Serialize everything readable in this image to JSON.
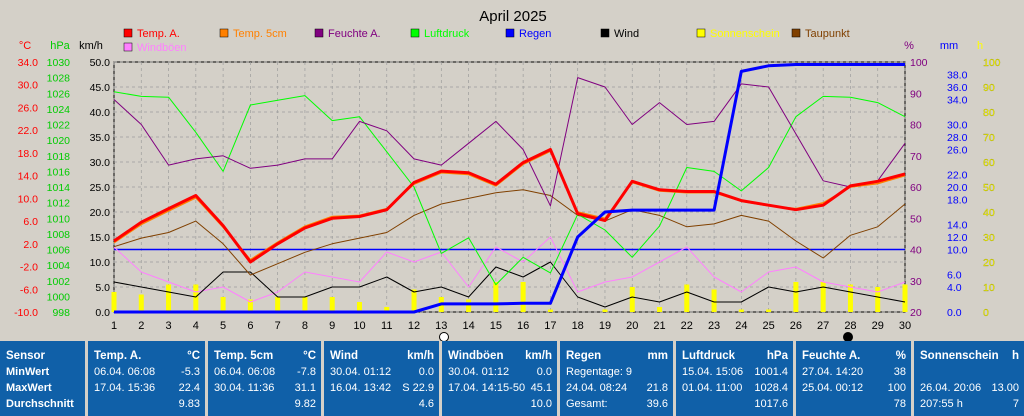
{
  "chart_data": {
    "type": "line",
    "title": "April 2025",
    "x": [
      1,
      2,
      3,
      4,
      5,
      6,
      7,
      8,
      9,
      10,
      11,
      12,
      13,
      14,
      15,
      16,
      17,
      18,
      19,
      20,
      21,
      22,
      23,
      24,
      25,
      26,
      27,
      28,
      29,
      30
    ],
    "xticks": [
      "1",
      "2",
      "3",
      "4",
      "5",
      "6",
      "7",
      "8",
      "9",
      "10",
      "11",
      "12",
      "13",
      "14",
      "15",
      "16",
      "17",
      "18",
      "19",
      "20",
      "21",
      "22",
      "23",
      "24",
      "25",
      "26",
      "27",
      "28",
      "29",
      "30"
    ],
    "axes": {
      "temp": {
        "unit": "°C",
        "color": "#ff0000",
        "range": [
          -10,
          34
        ],
        "ticks": [
          "34.0",
          "30.0",
          "26.0",
          "22.0",
          "18.0",
          "14.0",
          "10.0",
          "6.0",
          "2.0",
          "-2.0",
          "-6.0",
          "-10.0"
        ]
      },
      "press": {
        "unit": "hPa",
        "color": "#00cc00",
        "range": [
          998,
          1030
        ],
        "ticks": [
          "1030",
          "1028",
          "1026",
          "1024",
          "1022",
          "1020",
          "1018",
          "1016",
          "1014",
          "1012",
          "1010",
          "1008",
          "1006",
          "1004",
          "1002",
          "1000",
          "998"
        ]
      },
      "wind": {
        "unit": "km/h",
        "color": "#000000",
        "range": [
          0,
          50
        ],
        "ticks": [
          "50.0",
          "45.0",
          "40.0",
          "35.0",
          "30.0",
          "25.0",
          "20.0",
          "15.0",
          "10.0",
          "5.0",
          "0.0"
        ]
      },
      "hum": {
        "unit": "%",
        "color": "#800080",
        "range": [
          20,
          100
        ],
        "ticks": [
          "100",
          "90",
          "80",
          "70",
          "60",
          "50",
          "40",
          "30",
          "20"
        ]
      },
      "rain": {
        "unit": "mm",
        "color": "#0000ff",
        "range": [
          0,
          40
        ],
        "ticks": [
          "38.0",
          "36.0",
          "34.0",
          "30.0",
          "28.0",
          "26.0",
          "22.0",
          "20.0",
          "18.0",
          "14.0",
          "12.0",
          "10.0",
          "6.0",
          "4.0",
          "0.0"
        ]
      },
      "sun": {
        "unit": "h",
        "color": "#ffff00",
        "range": [
          0,
          100
        ],
        "ticks": [
          "100",
          "90",
          "80",
          "70",
          "60",
          "50",
          "40",
          "30",
          "20",
          "10",
          "0"
        ]
      }
    },
    "legend": [
      {
        "name": "Temp. A.",
        "color": "#ff0000"
      },
      {
        "name": "Temp. 5cm",
        "color": "#ff8000"
      },
      {
        "name": "Feuchte A.",
        "color": "#800080"
      },
      {
        "name": "Luftdruck",
        "color": "#00ff00"
      },
      {
        "name": "Regen",
        "color": "#0000ff"
      },
      {
        "name": "Wind",
        "color": "#000000"
      },
      {
        "name": "Sonnenschein",
        "color": "#ffff00"
      },
      {
        "name": "Taupunkt",
        "color": "#804000"
      },
      {
        "name": "Windböen",
        "color": "#ff80ff"
      }
    ],
    "series": {
      "Temp. A.": [
        2.5,
        5.8,
        8.2,
        10.5,
        5.2,
        -1.2,
        2.0,
        4.8,
        6.5,
        6.8,
        8.0,
        12.8,
        14.8,
        14.5,
        12.5,
        16.3,
        18.6,
        7.3,
        6.1,
        13.0,
        11.5,
        11.2,
        11.2,
        9.6,
        8.8,
        8.0,
        8.8,
        12.2,
        13.0,
        14.3
      ],
      "Temp. 5cm": [
        2.2,
        5.4,
        7.8,
        10.1,
        4.9,
        -0.8,
        2.3,
        5.1,
        6.8,
        7.0,
        8.2,
        12.5,
        14.5,
        14.2,
        12.2,
        16.0,
        18.3,
        7.6,
        6.5,
        12.8,
        11.3,
        11.0,
        11.0,
        9.5,
        8.7,
        8.2,
        9.2,
        12.0,
        12.6,
        14.0
      ],
      "Taupunkt": [
        1.5,
        3.0,
        4.0,
        6.0,
        2.0,
        -3.5,
        -1.5,
        0.5,
        2.0,
        3.0,
        4.0,
        7.0,
        9.0,
        10.0,
        11.0,
        11.5,
        10.5,
        7.0,
        6.0,
        8.0,
        7.0,
        5.0,
        5.5,
        7.0,
        6.0,
        2.5,
        -0.5,
        3.5,
        5.0,
        9.0
      ],
      "Windböen": [
        13,
        8,
        6,
        4,
        5,
        2,
        4,
        8,
        7,
        6,
        12,
        10,
        12,
        5,
        13,
        10,
        15,
        4,
        6,
        7,
        10,
        13,
        7,
        4,
        8,
        9,
        6,
        5,
        4,
        6
      ],
      "Wind": [
        6,
        5,
        4,
        3,
        8,
        8,
        3,
        3,
        5,
        5,
        7,
        4,
        5,
        3,
        9,
        7,
        10,
        3,
        1,
        3,
        2,
        4,
        2,
        2,
        5,
        4,
        5,
        4,
        3,
        2
      ],
      "Feuchte A.": [
        88,
        80,
        67,
        69,
        70,
        66,
        67,
        69,
        69,
        81,
        78,
        69,
        67,
        74,
        81,
        72,
        54,
        95,
        92,
        80,
        87,
        80,
        81,
        93,
        92,
        77,
        62,
        60,
        62,
        74
      ],
      "Luftdruck": [
        1026.2,
        1025.6,
        1025.5,
        1021.0,
        1016.0,
        1024.5,
        1025.1,
        1025.7,
        1022.5,
        1023.0,
        1018.5,
        1014.0,
        1005.5,
        1007.5,
        1001.5,
        1005.0,
        1003.0,
        1010.5,
        1008.5,
        1005.0,
        1009.0,
        1016.5,
        1016.0,
        1013.5,
        1016.5,
        1023.0,
        1025.6,
        1025.5,
        1024.8,
        1023.0
      ],
      "Regen": [
        0,
        0,
        0,
        0,
        0,
        0,
        0,
        0,
        0,
        0,
        0,
        0,
        1.3,
        1.3,
        1.3,
        1.4,
        1.4,
        12.0,
        16.0,
        16.3,
        16.3,
        16.3,
        16.3,
        38.5,
        39.4,
        39.6,
        39.6,
        39.6,
        39.6,
        39.6
      ],
      "Sonnenschein": [
        8,
        7,
        11,
        11,
        6,
        5,
        6,
        6,
        6,
        4,
        2,
        9,
        6,
        5,
        12,
        12,
        1,
        0,
        1,
        10,
        2,
        11,
        9,
        1,
        1,
        12,
        12,
        11,
        10,
        11
      ]
    }
  },
  "stats": [
    {
      "title": "Sensor",
      "unit": "",
      "rows": [
        {
          "label": "MinWert",
          "date": "",
          "value": ""
        },
        {
          "label": "MaxWert",
          "date": "",
          "value": ""
        },
        {
          "label": "Durchschnitt",
          "date": "",
          "value": ""
        }
      ]
    },
    {
      "title": "Temp. A.",
      "unit": "°C",
      "rows": [
        {
          "label": "",
          "date": "06.04.  06:08",
          "value": "-5.3"
        },
        {
          "label": "",
          "date": "17.04.  15:36",
          "value": "22.4"
        },
        {
          "label": "",
          "date": "",
          "value": "9.83"
        }
      ]
    },
    {
      "title": "Temp. 5cm",
      "unit": "°C",
      "rows": [
        {
          "label": "",
          "date": "06.04.  06:08",
          "value": "-7.8"
        },
        {
          "label": "",
          "date": "30.04.  11:36",
          "value": "31.1"
        },
        {
          "label": "",
          "date": "",
          "value": "9.82"
        }
      ]
    },
    {
      "title": "Wind",
      "unit": "km/h",
      "rows": [
        {
          "label": "",
          "date": "30.04.  01:12",
          "value": "0.0"
        },
        {
          "label": "",
          "date": "16.04.  13:42",
          "value": "S 22.9"
        },
        {
          "label": "",
          "date": "",
          "value": "4.6"
        }
      ]
    },
    {
      "title": "Windböen",
      "unit": "km/h",
      "rows": [
        {
          "label": "",
          "date": "30.04.  01:12",
          "value": "0.0"
        },
        {
          "label": "",
          "date": "17.04.  14:15-50",
          "value": "45.1"
        },
        {
          "label": "",
          "date": "",
          "value": "10.0"
        }
      ]
    },
    {
      "title": "Regen",
      "unit": "mm",
      "rows": [
        {
          "label": "",
          "date": "Regentage:  9",
          "value": ""
        },
        {
          "label": "",
          "date": "24.04.  08:24",
          "value": "21.8"
        },
        {
          "label": "",
          "date": "Gesamt:",
          "value": "39.6"
        }
      ]
    },
    {
      "title": "Luftdruck",
      "unit": "hPa",
      "rows": [
        {
          "label": "",
          "date": "15.04.  15:06",
          "value": "1001.4"
        },
        {
          "label": "",
          "date": "01.04.  11:00",
          "value": "1028.4"
        },
        {
          "label": "",
          "date": "",
          "value": "1017.6"
        }
      ]
    },
    {
      "title": "Feuchte A.",
      "unit": "%",
      "rows": [
        {
          "label": "",
          "date": "27.04.  14:20",
          "value": "38"
        },
        {
          "label": "",
          "date": "25.04.  00:12",
          "value": "100"
        },
        {
          "label": "",
          "date": "",
          "value": "78"
        }
      ]
    },
    {
      "title": "Sonnenschein",
      "unit": "h",
      "rows": [
        {
          "label": "",
          "date": "",
          "value": ""
        },
        {
          "label": "",
          "date": "26.04.  20:06",
          "value": "13.00"
        },
        {
          "label": "",
          "date": "207:55 h",
          "value": "7"
        }
      ]
    }
  ]
}
